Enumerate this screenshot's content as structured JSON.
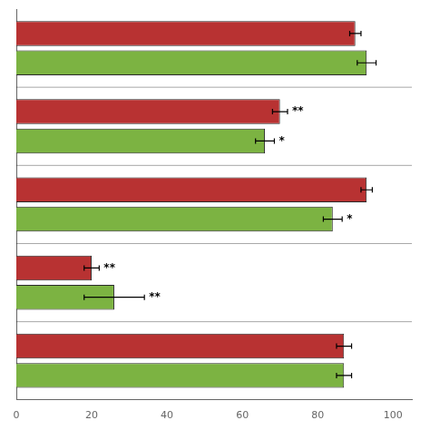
{
  "chart_data": {
    "type": "bar",
    "orientation": "horizontal",
    "categories": [
      null,
      null,
      null,
      null,
      null
    ],
    "series": [
      {
        "color": "#b83232",
        "values": [
          90,
          70,
          93,
          20,
          87
        ],
        "errors": [
          1.5,
          2.0,
          1.5,
          2.0,
          2.0
        ],
        "annotations": [
          null,
          "**",
          null,
          "**",
          null
        ]
      },
      {
        "color": "#7cb342",
        "values": [
          93,
          66,
          84,
          26,
          87
        ],
        "errors": [
          2.5,
          2.5,
          2.5,
          8.0,
          2.0
        ],
        "annotations": [
          null,
          "*",
          "*",
          "**",
          null
        ]
      }
    ],
    "xlim": [
      0,
      105
    ],
    "xticks": [
      0,
      20,
      40,
      60,
      80,
      100
    ],
    "grid": false,
    "tick_labels": "x"
  }
}
